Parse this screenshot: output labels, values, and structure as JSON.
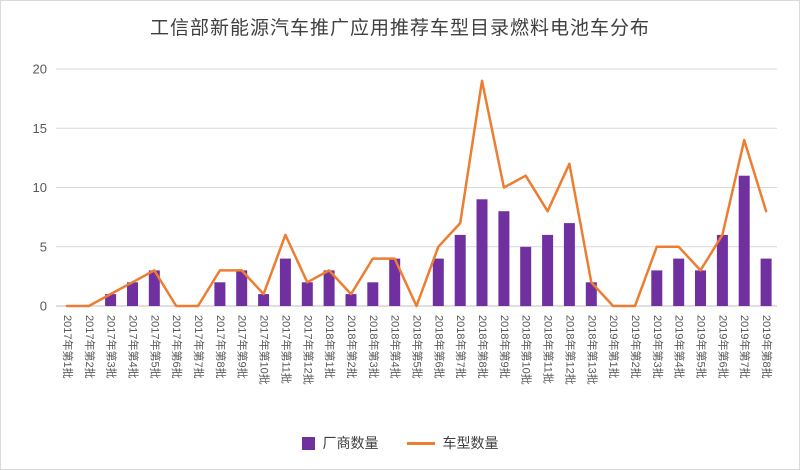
{
  "title": "工信部新能源汽车推广应用推荐车型目录燃料电池车分布",
  "colors": {
    "bar": "#7030A0",
    "line": "#ED7D31",
    "grid": "#d9d9d9",
    "axis": "#bfbfbf",
    "tick_text": "#595959",
    "title_text": "#404040"
  },
  "chart_data": {
    "type": "bar",
    "subtype": "bar+line combo",
    "title": "工信部新能源汽车推广应用推荐车型目录燃料电池车分布",
    "categories": [
      "2017年第1批",
      "2017年第2批",
      "2017年第3批",
      "2017年第4批",
      "2017年第5批",
      "2017年第6批",
      "2017年第7批",
      "2017年第8批",
      "2017年第9批",
      "2017年第10批",
      "2017年第11批",
      "2017年第12批",
      "2018年第1批",
      "2018年第2批",
      "2018年第3批",
      "2018年第4批",
      "2018年第5批",
      "2018年第6批",
      "2018年第7批",
      "2018年第8批",
      "2018年第9批",
      "2018年第10批",
      "2018年第11批",
      "2018年第12批",
      "2018年第13批",
      "2019年第1批",
      "2019年第2批",
      "2019年第3批",
      "2019年第4批",
      "2019年第5批",
      "2019年第6批",
      "2019年第7批",
      "2019年第8批"
    ],
    "series": [
      {
        "name": "厂商数量",
        "type": "bar",
        "color": "#7030A0",
        "values": [
          0,
          0,
          1,
          2,
          3,
          0,
          0,
          2,
          3,
          1,
          4,
          2,
          3,
          1,
          2,
          4,
          0,
          4,
          6,
          9,
          8,
          5,
          6,
          7,
          2,
          0,
          0,
          3,
          4,
          3,
          6,
          11,
          4
        ]
      },
      {
        "name": "车型数量",
        "type": "line",
        "color": "#ED7D31",
        "values": [
          0,
          0,
          1,
          2,
          3,
          0,
          0,
          3,
          3,
          1,
          6,
          2,
          3,
          1,
          4,
          4,
          0,
          5,
          7,
          19,
          10,
          11,
          8,
          12,
          2,
          0,
          0,
          5,
          5,
          3,
          6,
          14,
          8
        ]
      }
    ],
    "xlabel": "",
    "ylabel": "",
    "ylim": [
      0,
      20
    ],
    "yticks": [
      0,
      5,
      10,
      15,
      20
    ],
    "grid": true,
    "legend_position": "bottom",
    "x_tick_rotation": 90
  }
}
